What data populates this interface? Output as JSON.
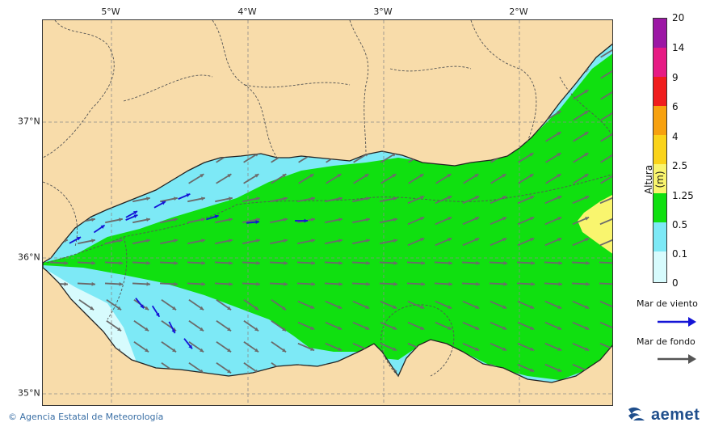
{
  "map": {
    "lon_ticks": [
      "5°W",
      "4°W",
      "3°W",
      "2°W"
    ],
    "lat_ticks": [
      "37°N",
      "36°N",
      "35°N"
    ],
    "region": "Alboran Sea / Strait of Gibraltar",
    "colors": {
      "land": "#f8dcaa",
      "coast": "#222222",
      "grid": "#8a8a8a",
      "borders": "#555555",
      "wind_arrow": "#1414d6",
      "swell_arrow": "#6b6b6b"
    }
  },
  "colorbar": {
    "title": "Altura (m)",
    "labels": [
      "20",
      "14",
      "9",
      "6",
      "4",
      "2.5",
      "1.25",
      "0.5",
      "0.1",
      "0"
    ],
    "colors": [
      "#9c17a5",
      "#e61b84",
      "#f01d1d",
      "#f7a10f",
      "#fad31a",
      "#f9f56e",
      "#10e010",
      "#7de9f6",
      "#d7fbfd"
    ]
  },
  "legend": {
    "wind_label": "Mar de viento",
    "swell_label": "Mar de fondo"
  },
  "footer": {
    "credit": "© Agencia Estatal de Meteorología",
    "logo_text": "aemet",
    "logo_icon": "aemet-logo-icon"
  }
}
